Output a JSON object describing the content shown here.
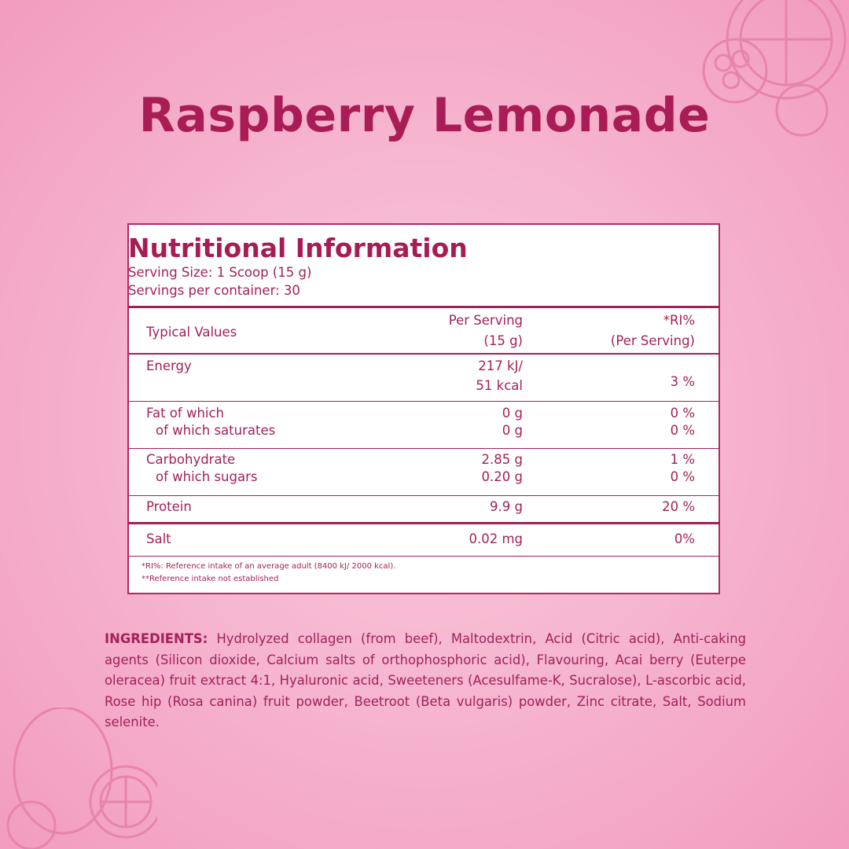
{
  "title": "Raspberry Lemonade",
  "nutrition": {
    "heading": "Nutritional Information",
    "serving_size": "Serving Size: 1 Scoop (15 g)",
    "servings_per_container": "Servings per container: 30",
    "table": {
      "header": {
        "label": "Typical Values",
        "per_serving": [
          "Per Serving",
          "(15 g)"
        ],
        "ri": [
          "*RI%",
          "(Per Serving)"
        ]
      },
      "rows": [
        {
          "labels": [
            "Energy"
          ],
          "values": [
            "217 kJ/",
            "51 kcal"
          ],
          "ri": [
            "3 %"
          ]
        },
        {
          "labels": [
            "Fat of which",
            "of which saturates"
          ],
          "values": [
            "0 g",
            "0 g"
          ],
          "ri": [
            "0 %",
            "0 %"
          ]
        },
        {
          "labels": [
            "Carbohydrate",
            "of which sugars"
          ],
          "values": [
            "2.85 g",
            "0.20 g"
          ],
          "ri": [
            "1 %",
            "0 %"
          ]
        },
        {
          "labels": [
            "Protein"
          ],
          "values": [
            "9.9 g"
          ],
          "ri": [
            "20 %"
          ]
        },
        {
          "labels": [
            "Salt"
          ],
          "values": [
            "0.02 mg"
          ],
          "ri": [
            "0%"
          ]
        }
      ]
    },
    "footnotes": [
      "*RI%: Reference intake of an average adult (8400 kJ/ 2000 kcal).",
      "**Reference intake not established"
    ]
  },
  "ingredients": {
    "label": "INGREDIENTS:",
    "text": "Hydrolyzed collagen (from beef), Maltodextrin, Acid (Citric acid), Anti-caking agents (Silicon dioxide, Calcium salts of orthophosphoric acid), Flavouring, Acai berry (Euterpe oleracea) fruit extract 4:1, Hyaluronic acid, Sweeteners (Acesulfame-K, Sucralose), L-ascorbic acid, Rose hip (Rosa canina) fruit powder, Beetroot (Beta vulgaris) powder, Zinc citrate, Salt, Sodium selenite."
  }
}
